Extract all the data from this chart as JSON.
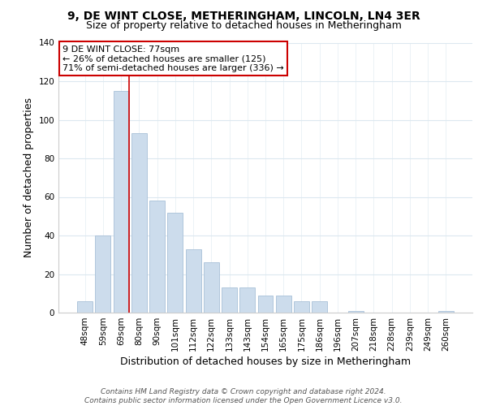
{
  "title_line1": "9, DE WINT CLOSE, METHERINGHAM, LINCOLN, LN4 3ER",
  "title_line2": "Size of property relative to detached houses in Metheringham",
  "xlabel": "Distribution of detached houses by size in Metheringham",
  "ylabel": "Number of detached properties",
  "bar_labels": [
    "48sqm",
    "59sqm",
    "69sqm",
    "80sqm",
    "90sqm",
    "101sqm",
    "112sqm",
    "122sqm",
    "133sqm",
    "143sqm",
    "154sqm",
    "165sqm",
    "175sqm",
    "186sqm",
    "196sqm",
    "207sqm",
    "218sqm",
    "228sqm",
    "239sqm",
    "249sqm",
    "260sqm"
  ],
  "bar_values": [
    6,
    40,
    115,
    93,
    58,
    52,
    33,
    26,
    13,
    13,
    9,
    9,
    6,
    6,
    0,
    1,
    0,
    0,
    0,
    0,
    1
  ],
  "bar_color": "#ccdcec",
  "bar_edge_color": "#a8c0d8",
  "marker_line_color": "#cc0000",
  "annotation_line1": "9 DE WINT CLOSE: 77sqm",
  "annotation_line2": "← 26% of detached houses are smaller (125)",
  "annotation_line3": "71% of semi-detached houses are larger (336) →",
  "annotation_box_color": "#ffffff",
  "annotation_box_edge": "#cc0000",
  "ylim": [
    0,
    140
  ],
  "yticks": [
    0,
    20,
    40,
    60,
    80,
    100,
    120,
    140
  ],
  "footer_line1": "Contains HM Land Registry data © Crown copyright and database right 2024.",
  "footer_line2": "Contains public sector information licensed under the Open Government Licence v3.0.",
  "background_color": "#ffffff",
  "grid_color": "#dce8f0",
  "title_fontsize": 10,
  "subtitle_fontsize": 9,
  "axis_label_fontsize": 9,
  "tick_fontsize": 7.5,
  "footer_fontsize": 6.5
}
